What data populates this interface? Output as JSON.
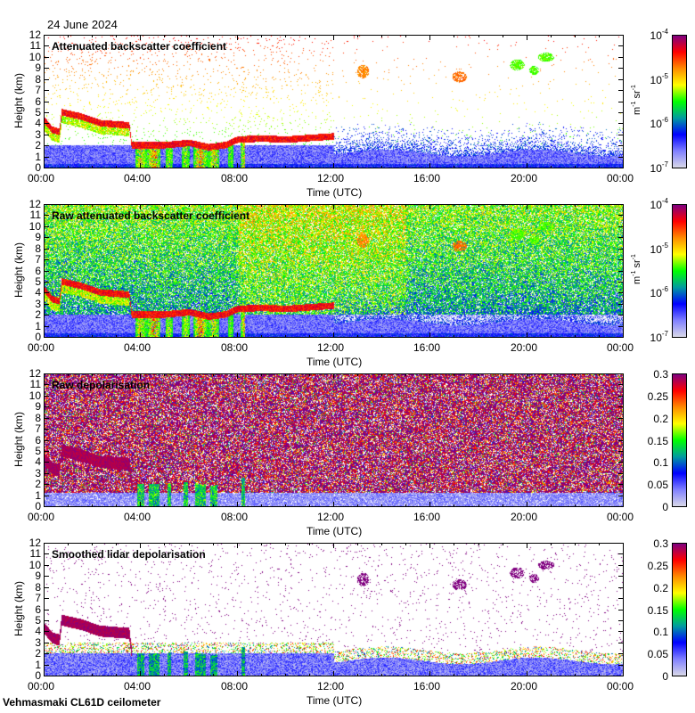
{
  "header": {
    "date": "24 June 2024"
  },
  "footer": {
    "site": "Vehmasmaki CL61D ceilometer"
  },
  "chart_data": [
    {
      "type": "heatmap",
      "title": "Attenuated backscatter coefficient",
      "xlabel": "Time (UTC)",
      "ylabel": "Height (km)",
      "xticks": [
        "00:00",
        "04:00",
        "08:00",
        "12:00",
        "16:00",
        "20:00",
        "00:00"
      ],
      "xlim": [
        0,
        24
      ],
      "ylim": [
        0,
        12
      ],
      "yticks": [
        0,
        1,
        2,
        3,
        4,
        5,
        6,
        7,
        8,
        9,
        10,
        11,
        12
      ],
      "colorbar": {
        "scale": "log",
        "range": [
          1e-07,
          0.0001
        ],
        "ticks": [
          {
            "base": "10",
            "exp": "-7"
          },
          {
            "base": "10",
            "exp": "-6"
          },
          {
            "base": "10",
            "exp": "-5"
          },
          {
            "base": "10",
            "exp": "-4"
          }
        ],
        "unit": {
          "m": "m",
          "m_exp": "-1",
          "sr": "sr",
          "sr_exp": "-1"
        }
      },
      "field": "att"
    },
    {
      "type": "heatmap",
      "title": "Raw attenuated backscatter coefficient",
      "xlabel": "Time (UTC)",
      "ylabel": "Height (km)",
      "xticks": [
        "00:00",
        "04:00",
        "08:00",
        "12:00",
        "16:00",
        "20:00",
        "00:00"
      ],
      "xlim": [
        0,
        24
      ],
      "ylim": [
        0,
        12
      ],
      "yticks": [
        0,
        1,
        2,
        3,
        4,
        5,
        6,
        7,
        8,
        9,
        10,
        11,
        12
      ],
      "colorbar": {
        "scale": "log",
        "range": [
          1e-07,
          0.0001
        ],
        "ticks": [
          {
            "base": "10",
            "exp": "-7"
          },
          {
            "base": "10",
            "exp": "-6"
          },
          {
            "base": "10",
            "exp": "-5"
          },
          {
            "base": "10",
            "exp": "-4"
          }
        ],
        "unit": {
          "m": "m",
          "m_exp": "-1",
          "sr": "sr",
          "sr_exp": "-1"
        }
      },
      "field": "raw"
    },
    {
      "type": "heatmap",
      "title": "Raw depolarisation",
      "xlabel": "Time (UTC)",
      "ylabel": "Height (km)",
      "xticks": [
        "00:00",
        "04:00",
        "08:00",
        "12:00",
        "16:00",
        "20:00",
        "00:00"
      ],
      "xlim": [
        0,
        24
      ],
      "ylim": [
        0,
        12
      ],
      "yticks": [
        0,
        1,
        2,
        3,
        4,
        5,
        6,
        7,
        8,
        9,
        10,
        11,
        12
      ],
      "colorbar": {
        "scale": "linear",
        "range": [
          0,
          0.3
        ],
        "ticks": [
          {
            "base": "0"
          },
          {
            "base": "0.05"
          },
          {
            "base": "0.1"
          },
          {
            "base": "0.15"
          },
          {
            "base": "0.2"
          },
          {
            "base": "0.25"
          },
          {
            "base": "0.3"
          }
        ]
      },
      "field": "rawdep"
    },
    {
      "type": "heatmap",
      "title": "Smoothed lidar depolarisation",
      "xlabel": "Time (UTC)",
      "ylabel": "Height (km)",
      "xticks": [
        "00:00",
        "04:00",
        "08:00",
        "12:00",
        "16:00",
        "20:00",
        "00:00"
      ],
      "xlim": [
        0,
        24
      ],
      "ylim": [
        0,
        12
      ],
      "yticks": [
        0,
        1,
        2,
        3,
        4,
        5,
        6,
        7,
        8,
        9,
        10,
        11,
        12
      ],
      "colorbar": {
        "scale": "linear",
        "range": [
          0,
          0.3
        ],
        "ticks": [
          {
            "base": "0"
          },
          {
            "base": "0.05"
          },
          {
            "base": "0.1"
          },
          {
            "base": "0.15"
          },
          {
            "base": "0.2"
          },
          {
            "base": "0.25"
          },
          {
            "base": "0.3"
          }
        ]
      },
      "field": "dep"
    }
  ],
  "colors": {
    "colormap": [
      "#d8d8e8",
      "#8080ff",
      "#0000ff",
      "#009ca0",
      "#00ff00",
      "#ffff00",
      "#ff8c00",
      "#ff0000",
      "#800080"
    ]
  }
}
